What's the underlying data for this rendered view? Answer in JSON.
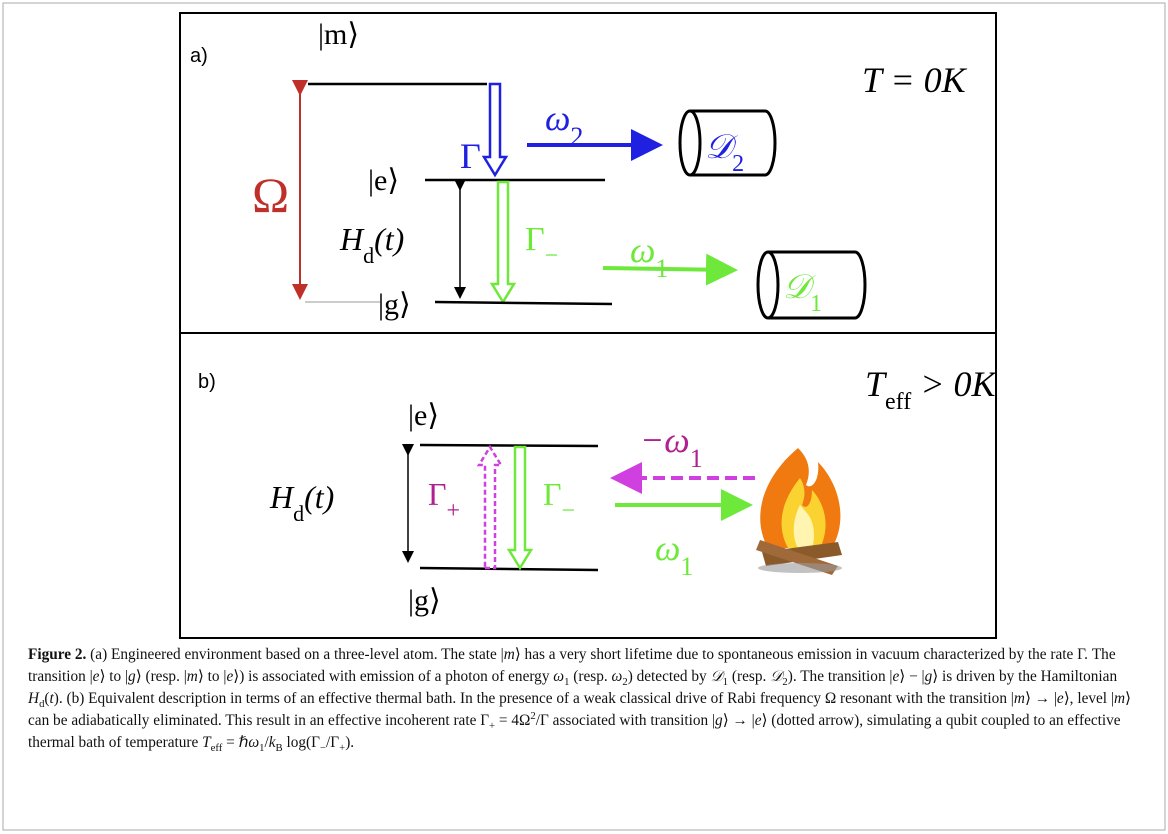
{
  "figure": {
    "panel_a": {
      "label": "a)",
      "state_m": "|m⟩",
      "state_e": "|e⟩",
      "state_g": "|g⟩",
      "rabi": "Ω",
      "decay": "Γ",
      "photon_2": {
        "text": "ω",
        "sub": "2"
      },
      "detector_2": {
        "text": "𝒟",
        "sub": "2"
      },
      "hamiltonian": {
        "text": "H",
        "sub": "d",
        "after": "(t)"
      },
      "decay_minus": {
        "text": "Γ",
        "sub": "−"
      },
      "photon_1": {
        "text": "ω",
        "sub": "1"
      },
      "detector_1": {
        "text": "𝒟",
        "sub": "1"
      },
      "temperature": "T = 0K"
    },
    "panel_b": {
      "label": "b)",
      "temperature": {
        "text": "T",
        "sub": "eff",
        "after": " > 0K"
      },
      "state_e": "|e⟩",
      "state_g": "|g⟩",
      "hamiltonian": {
        "text": "H",
        "sub": "d",
        "after": "(t)"
      },
      "rate_plus": {
        "text": "Γ",
        "sub": "+"
      },
      "rate_minus": {
        "text": "Γ",
        "sub": "−"
      },
      "absorbed_photon": {
        "text": "−ω",
        "sub": "1"
      },
      "emitted_photon": {
        "text": "ω",
        "sub": "1"
      }
    }
  },
  "caption": {
    "label": "Figure 2.",
    "runs": [
      " (a) Engineered environment based on a three-level atom. The state |",
      {
        "i": "m"
      },
      "⟩ has a very short lifetime due to spontaneous emission in vacuum characterized by the rate Γ. The transition |",
      {
        "i": "e"
      },
      "⟩ to |",
      {
        "i": "g"
      },
      "⟩ (resp. |",
      {
        "i": "m"
      },
      "⟩ to |",
      {
        "i": "e"
      },
      "⟩) is associated with emission of a photon of energy ",
      {
        "i": "ω"
      },
      {
        "sub": "1"
      },
      " (resp. ",
      {
        "i": "ω"
      },
      {
        "sub": "2"
      },
      ") detected by ",
      {
        "i": "𝒟"
      },
      {
        "sub": "1"
      },
      " (resp. ",
      {
        "i": "𝒟"
      },
      {
        "sub": "2"
      },
      "). The transition |",
      {
        "i": "e"
      },
      "⟩ − |",
      {
        "i": "g"
      },
      "⟩ is driven by the Hamiltonian ",
      {
        "i": "H"
      },
      {
        "sub": "d"
      },
      "(",
      {
        "i": "t"
      },
      "). (b) Equivalent description in terms of an effective thermal bath. In the presence of a weak classical drive of Rabi frequency Ω resonant with the transition |",
      {
        "i": "m"
      },
      "⟩ → |",
      {
        "i": "e"
      },
      "⟩, level |",
      {
        "i": "m"
      },
      "⟩ can be adiabatically eliminated. This result in an effective incoherent rate Γ",
      {
        "sub": "+"
      },
      " = 4Ω",
      {
        "sup": "2"
      },
      "/Γ associated with transition |",
      {
        "i": "g"
      },
      "⟩ → |",
      {
        "i": "e"
      },
      "⟩ (dotted arrow), simulating a qubit coupled to an effective thermal bath of temperature ",
      {
        "i": "T"
      },
      {
        "sub": "eff"
      },
      " = ℏ",
      {
        "i": "ω"
      },
      {
        "sub": "1"
      },
      "/",
      {
        "i": "k"
      },
      {
        "sub": "B"
      },
      " log(Γ",
      {
        "sub": "−"
      },
      "/Γ",
      {
        "sub": "+"
      },
      ")."
    ]
  }
}
